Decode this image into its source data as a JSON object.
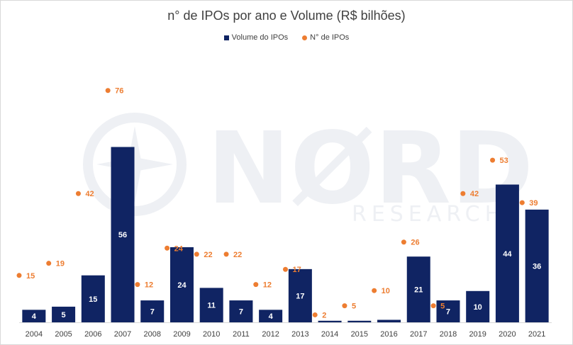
{
  "colors": {
    "bar": "#102463",
    "dot": "#ED7D31",
    "axis": "#d9d9d9",
    "text": "#404040",
    "watermark": "#eef0f4"
  },
  "watermark": {
    "brand": "NØRD",
    "sub": "RESEARCH"
  },
  "chart_data": {
    "type": "bar",
    "title": "n° de IPOs por ano e Volume (R$ bilhões)",
    "legend_position": "top",
    "grid": false,
    "categories": [
      "2004",
      "2005",
      "2006",
      "2007",
      "2008",
      "2009",
      "2010",
      "2011",
      "2012",
      "2013",
      "2014",
      "2015",
      "2016",
      "2017",
      "2018",
      "2019",
      "2020",
      "2021"
    ],
    "series": [
      {
        "name": "Volume do IPOs",
        "kind": "bar",
        "values": [
          4,
          5,
          15,
          56,
          7,
          24,
          11,
          7,
          4,
          17,
          null,
          null,
          null,
          21,
          7,
          10,
          44,
          36
        ],
        "shown_values": [
          4,
          5,
          15,
          56,
          7,
          24,
          11,
          7,
          4,
          17,
          0.5,
          0.5,
          0.8,
          21,
          7,
          10,
          44,
          36
        ]
      },
      {
        "name": "N° de IPOs",
        "kind": "scatter",
        "values": [
          15,
          19,
          42,
          76,
          12,
          24,
          22,
          22,
          12,
          17,
          2,
          5,
          10,
          26,
          5,
          42,
          53,
          39
        ]
      }
    ]
  }
}
